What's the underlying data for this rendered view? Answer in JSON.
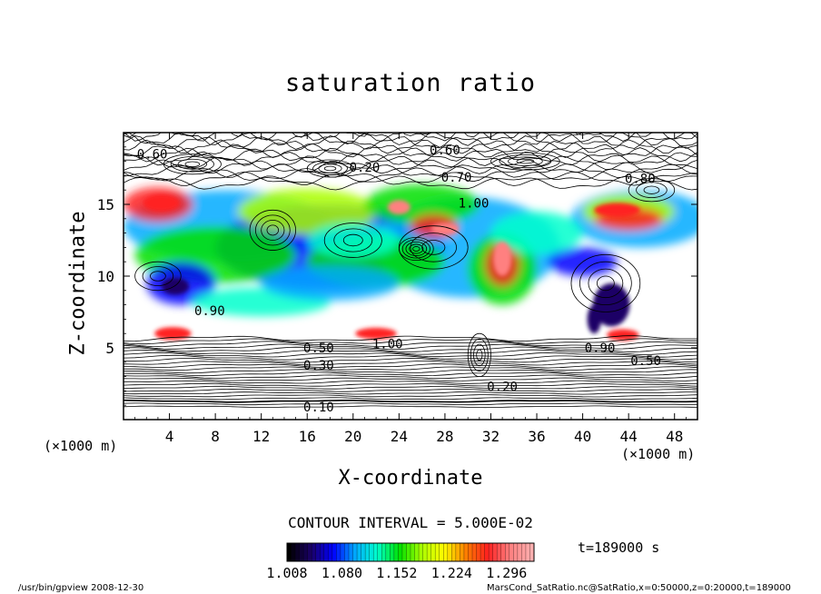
{
  "chart_data": {
    "type": "heatmap",
    "title": "saturation ratio",
    "xlabel": "X-coordinate",
    "ylabel": "Z-coordinate",
    "x_unit": "(×1000 m)",
    "y_unit": "(×1000 m)",
    "xlim": [
      0,
      50
    ],
    "ylim": [
      0,
      20
    ],
    "x_ticks": [
      "4",
      "8",
      "12",
      "16",
      "20",
      "24",
      "28",
      "32",
      "36",
      "40",
      "44",
      "48"
    ],
    "y_ticks": [
      "5",
      "10",
      "15"
    ],
    "contour_interval_text": "CONTOUR INTERVAL = 5.000E-02",
    "contour_labels": [
      "0.60",
      "0.20",
      "0.60",
      "0.70",
      "1.00",
      "0.80",
      "0.90",
      "1.00",
      "0.50",
      "0.30",
      "0.20",
      "0.10",
      "0.90",
      "0.50"
    ],
    "colorbar": {
      "range": [
        1.008,
        1.332
      ],
      "tick_labels": [
        "1.008",
        "1.080",
        "1.152",
        "1.224",
        "1.296"
      ],
      "colors": [
        "#000000",
        "#1a0066",
        "#0000ff",
        "#00aaff",
        "#00ffcc",
        "#00e000",
        "#aaff00",
        "#ffff00",
        "#ff8000",
        "#ff2020",
        "#ff8080",
        "#ffb0b0"
      ]
    },
    "time_label": "t=189000 s",
    "grid": false
  },
  "footer": {
    "left": "/usr/bin/gpview  2008-12-30",
    "right": "MarsCond_SatRatio.nc@SatRatio,x=0:50000,z=0:20000,t=189000"
  }
}
